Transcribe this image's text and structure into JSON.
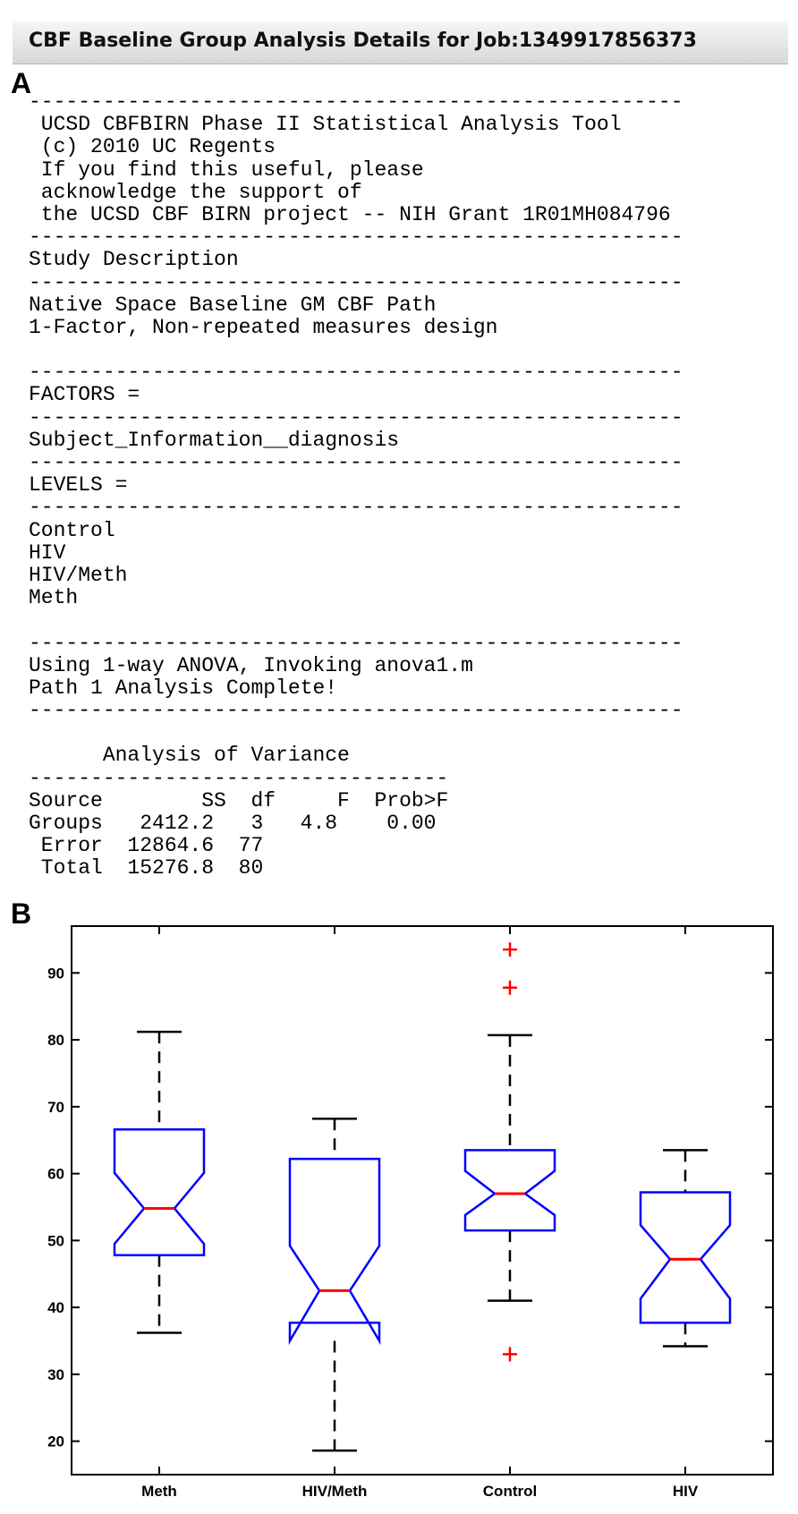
{
  "window": {
    "title": "CBF Baseline Group Analysis Details for Job:1349917856373"
  },
  "panels": {
    "a_label": "A",
    "b_label": "B"
  },
  "console_lines": [
    "-----------------------------------------------------",
    " UCSD CBFBIRN Phase II Statistical Analysis Tool",
    " (c) 2010 UC Regents",
    " If you find this useful, please",
    " acknowledge the support of",
    " the UCSD CBF BIRN project -- NIH Grant 1R01MH084796",
    "-----------------------------------------------------",
    "Study Description",
    "-----------------------------------------------------",
    "Native Space Baseline GM CBF Path",
    "1-Factor, Non-repeated measures design",
    "",
    "-----------------------------------------------------",
    "FACTORS =",
    "-----------------------------------------------------",
    "Subject_Information__diagnosis",
    "-----------------------------------------------------",
    "LEVELS =",
    "-----------------------------------------------------",
    "Control",
    "HIV",
    "HIV/Meth",
    "Meth",
    "",
    "-----------------------------------------------------",
    "Using 1-way ANOVA, Invoking anova1.m",
    "Path 1 Analysis Complete!",
    "-----------------------------------------------------",
    "",
    "      Analysis of Variance",
    "----------------------------------",
    "Source        SS  df     F  Prob>F",
    "Groups   2412.2   3   4.8    0.00",
    " Error  12864.6  77",
    " Total  15276.8  80"
  ],
  "chart_data": {
    "type": "boxplot",
    "title": "",
    "xlabel": "",
    "ylabel": "",
    "ylim": [
      15,
      97
    ],
    "yticks": [
      20,
      30,
      40,
      50,
      60,
      70,
      80,
      90
    ],
    "notched": true,
    "categories": [
      "Meth",
      "HIV/Meth",
      "Control",
      "HIV"
    ],
    "series": [
      {
        "group": "Meth",
        "whisker_low": 36.2,
        "q1": 47.8,
        "notch_low": 49.5,
        "median": 54.8,
        "notch_high": 60.1,
        "q3": 66.6,
        "whisker_high": 81.2,
        "outliers": []
      },
      {
        "group": "HIV/Meth",
        "whisker_low": 18.6,
        "q1": 37.7,
        "notch_low": 35.0,
        "median": 42.5,
        "notch_high": 49.2,
        "q3": 62.2,
        "whisker_high": 68.2,
        "outliers": []
      },
      {
        "group": "Control",
        "whisker_low": 41.0,
        "q1": 51.5,
        "notch_low": 53.8,
        "median": 57.0,
        "notch_high": 60.4,
        "q3": 63.5,
        "whisker_high": 80.7,
        "outliers": [
          33.0,
          87.8,
          93.5
        ]
      },
      {
        "group": "HIV",
        "whisker_low": 34.2,
        "q1": 37.7,
        "notch_low": 41.3,
        "median": 47.2,
        "notch_high": 52.3,
        "q3": 57.2,
        "whisker_high": 63.5,
        "outliers": []
      }
    ],
    "colors": {
      "box": "#0000ff",
      "median": "#ff0000",
      "outlier": "#ff0000",
      "whisker": "#000000"
    }
  }
}
